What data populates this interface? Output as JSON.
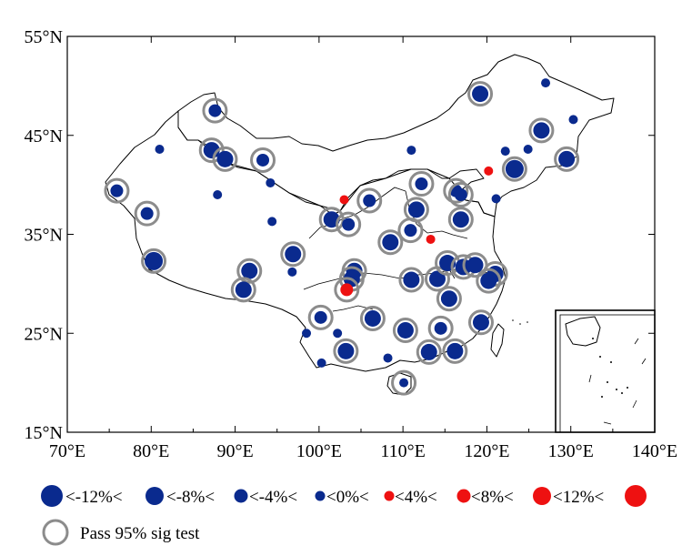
{
  "chart_data": {
    "type": "scatter",
    "lon_range": [
      70,
      140
    ],
    "lat_range": [
      15,
      55
    ],
    "x_ticks": [
      "70°E",
      "80°E",
      "90°E",
      "100°E",
      "110°E",
      "120°E",
      "130°E",
      "140°E"
    ],
    "y_ticks": [
      "55°N",
      "45°N",
      "35°N",
      "25°N",
      "15°N"
    ],
    "bins": {
      "boundaries": [
        "<-12%<",
        "<-8%<",
        "<-4%<",
        "<0%<",
        "<4%<",
        "<8%<",
        "<12%<"
      ],
      "markers": [
        {
          "color": "#0a2a8e",
          "size": 5
        },
        {
          "color": "#0a2a8e",
          "size": 4
        },
        {
          "color": "#0a2a8e",
          "size": 3
        },
        {
          "color": "#0a2a8e",
          "size": 2
        },
        {
          "color": "#ee1111",
          "size": 2
        },
        {
          "color": "#ee1111",
          "size": 3
        },
        {
          "color": "#ee1111",
          "size": 4
        },
        {
          "color": "#ee1111",
          "size": 5
        }
      ]
    },
    "sig_legend": "Pass 95% sig test",
    "stations": [
      {
        "lon": 119.2,
        "lat": 49.2,
        "bin": 1,
        "sig": true
      },
      {
        "lon": 127.0,
        "lat": 50.3,
        "bin": 3,
        "sig": false
      },
      {
        "lon": 130.3,
        "lat": 46.6,
        "bin": 3,
        "sig": false
      },
      {
        "lon": 126.5,
        "lat": 45.5,
        "bin": 1,
        "sig": true
      },
      {
        "lon": 129.5,
        "lat": 42.6,
        "bin": 1,
        "sig": true
      },
      {
        "lon": 124.9,
        "lat": 43.6,
        "bin": 3,
        "sig": false
      },
      {
        "lon": 122.2,
        "lat": 43.4,
        "bin": 3,
        "sig": false
      },
      {
        "lon": 123.3,
        "lat": 41.6,
        "bin": 0,
        "sig": true
      },
      {
        "lon": 121.1,
        "lat": 38.6,
        "bin": 3,
        "sig": false
      },
      {
        "lon": 120.2,
        "lat": 41.4,
        "bin": 4,
        "sig": false
      },
      {
        "lon": 87.6,
        "lat": 47.5,
        "bin": 2,
        "sig": true
      },
      {
        "lon": 81.0,
        "lat": 43.6,
        "bin": 3,
        "sig": false
      },
      {
        "lon": 87.2,
        "lat": 43.5,
        "bin": 1,
        "sig": true
      },
      {
        "lon": 88.8,
        "lat": 42.6,
        "bin": 1,
        "sig": true
      },
      {
        "lon": 93.3,
        "lat": 42.5,
        "bin": 2,
        "sig": true
      },
      {
        "lon": 75.9,
        "lat": 39.4,
        "bin": 2,
        "sig": true
      },
      {
        "lon": 87.9,
        "lat": 39.0,
        "bin": 3,
        "sig": false
      },
      {
        "lon": 94.2,
        "lat": 40.2,
        "bin": 3,
        "sig": false
      },
      {
        "lon": 79.5,
        "lat": 37.1,
        "bin": 2,
        "sig": true
      },
      {
        "lon": 94.4,
        "lat": 36.3,
        "bin": 3,
        "sig": false
      },
      {
        "lon": 80.3,
        "lat": 32.3,
        "bin": 0,
        "sig": true
      },
      {
        "lon": 91.7,
        "lat": 31.3,
        "bin": 1,
        "sig": true
      },
      {
        "lon": 96.9,
        "lat": 33.0,
        "bin": 1,
        "sig": true
      },
      {
        "lon": 96.8,
        "lat": 31.2,
        "bin": 3,
        "sig": false
      },
      {
        "lon": 91.0,
        "lat": 29.4,
        "bin": 1,
        "sig": true
      },
      {
        "lon": 103.0,
        "lat": 38.5,
        "bin": 4,
        "sig": false
      },
      {
        "lon": 106.0,
        "lat": 38.4,
        "bin": 2,
        "sig": true
      },
      {
        "lon": 101.5,
        "lat": 36.5,
        "bin": 1,
        "sig": true
      },
      {
        "lon": 103.5,
        "lat": 36.0,
        "bin": 2,
        "sig": true
      },
      {
        "lon": 112.2,
        "lat": 40.1,
        "bin": 2,
        "sig": true
      },
      {
        "lon": 116.3,
        "lat": 39.4,
        "bin": 2,
        "sig": true
      },
      {
        "lon": 116.9,
        "lat": 39.0,
        "bin": 2,
        "sig": true
      },
      {
        "lon": 111.6,
        "lat": 37.5,
        "bin": 1,
        "sig": true
      },
      {
        "lon": 110.9,
        "lat": 35.4,
        "bin": 2,
        "sig": true
      },
      {
        "lon": 116.9,
        "lat": 36.5,
        "bin": 1,
        "sig": true
      },
      {
        "lon": 113.3,
        "lat": 34.5,
        "bin": 4,
        "sig": false
      },
      {
        "lon": 108.5,
        "lat": 34.2,
        "bin": 1,
        "sig": true
      },
      {
        "lon": 104.2,
        "lat": 31.3,
        "bin": 1,
        "sig": true
      },
      {
        "lon": 103.9,
        "lat": 30.5,
        "bin": 1,
        "sig": true
      },
      {
        "lon": 103.3,
        "lat": 29.4,
        "bin": 5,
        "sig": true
      },
      {
        "lon": 111.0,
        "lat": 30.4,
        "bin": 1,
        "sig": true
      },
      {
        "lon": 114.1,
        "lat": 30.5,
        "bin": 1,
        "sig": true
      },
      {
        "lon": 115.3,
        "lat": 32.1,
        "bin": 1,
        "sig": true
      },
      {
        "lon": 117.2,
        "lat": 31.7,
        "bin": 1,
        "sig": true
      },
      {
        "lon": 118.6,
        "lat": 31.9,
        "bin": 1,
        "sig": true
      },
      {
        "lon": 121.0,
        "lat": 31.0,
        "bin": 1,
        "sig": true
      },
      {
        "lon": 120.2,
        "lat": 30.3,
        "bin": 1,
        "sig": true
      },
      {
        "lon": 115.5,
        "lat": 28.5,
        "bin": 1,
        "sig": true
      },
      {
        "lon": 100.2,
        "lat": 26.6,
        "bin": 2,
        "sig": true
      },
      {
        "lon": 106.4,
        "lat": 26.5,
        "bin": 1,
        "sig": true
      },
      {
        "lon": 110.3,
        "lat": 25.3,
        "bin": 1,
        "sig": true
      },
      {
        "lon": 114.5,
        "lat": 25.5,
        "bin": 2,
        "sig": true
      },
      {
        "lon": 119.3,
        "lat": 26.1,
        "bin": 1,
        "sig": true
      },
      {
        "lon": 102.2,
        "lat": 25.0,
        "bin": 3,
        "sig": false
      },
      {
        "lon": 98.5,
        "lat": 25.0,
        "bin": 3,
        "sig": false
      },
      {
        "lon": 103.2,
        "lat": 23.2,
        "bin": 1,
        "sig": true
      },
      {
        "lon": 113.1,
        "lat": 23.1,
        "bin": 1,
        "sig": true
      },
      {
        "lon": 116.2,
        "lat": 23.2,
        "bin": 1,
        "sig": true
      },
      {
        "lon": 100.3,
        "lat": 22.0,
        "bin": 3,
        "sig": false
      },
      {
        "lon": 108.2,
        "lat": 22.5,
        "bin": 3,
        "sig": false
      },
      {
        "lon": 110.1,
        "lat": 20.0,
        "bin": 3,
        "sig": true
      },
      {
        "lon": 111.0,
        "lat": 43.5,
        "bin": 3,
        "sig": false
      }
    ]
  }
}
